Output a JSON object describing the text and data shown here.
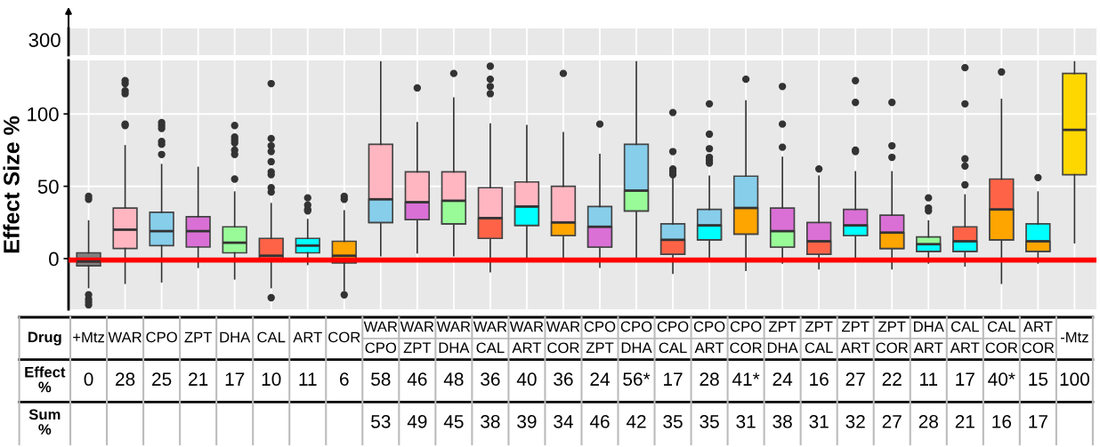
{
  "chart_data": [
    {
      "type": "other",
      "annotations": [
        "300"
      ]
    },
    {
      "type": "box",
      "ylabel": "Effect Size %",
      "categories": [
        "+Mtz",
        "WAR",
        "CPO",
        "ZPT",
        "DHA",
        "CAL",
        "ART",
        "COR",
        "WAR\nCPO",
        "WAR\nZPT",
        "WAR\nDHA",
        "WAR\nCAL",
        "WAR\nART",
        "WAR\nCOR",
        "CPO\nZPT",
        "CPO\nDHA",
        "CPO\nCAL",
        "CPO\nART",
        "CPO\nCOR",
        "ZPT\nDHA",
        "ZPT\nCAL",
        "ZPT\nART",
        "ZPT\nCOR",
        "DHA\nART",
        "CAL\nART",
        "CAL\nCOR",
        "ART\nCOR",
        "-Mtz"
      ],
      "boxes": [
        {
          "low": -20,
          "q1": -5,
          "median": -2,
          "q3": 4,
          "high": 26,
          "outliers": [
            43,
            41,
            -25,
            -28,
            -30,
            -32
          ]
        },
        {
          "low": -17,
          "q1": 7,
          "median": 20,
          "q3": 35,
          "high": 78,
          "outliers": [
            123,
            121,
            116,
            114,
            93,
            92
          ]
        },
        {
          "low": -16,
          "q1": 9,
          "median": 19,
          "q3": 32,
          "high": 65,
          "outliers": [
            94,
            92,
            90,
            81,
            79,
            72
          ]
        },
        {
          "low": -6,
          "q1": 8,
          "median": 19,
          "q3": 29,
          "high": 63
        },
        {
          "low": -14,
          "q1": 4,
          "median": 11,
          "q3": 22,
          "high": 46,
          "outliers": [
            92,
            84,
            82,
            80,
            75,
            72,
            55
          ]
        },
        {
          "low": -20,
          "q1": -1,
          "median": 2,
          "q3": 14,
          "high": 38,
          "outliers": [
            121,
            83,
            78,
            74,
            67,
            60,
            58,
            49,
            46,
            -27
          ]
        },
        {
          "low": -4,
          "q1": 4,
          "median": 9,
          "q3": 14,
          "high": 27,
          "outliers": [
            42,
            37,
            34,
            33
          ]
        },
        {
          "low": -22,
          "q1": -3,
          "median": 2,
          "q3": 12,
          "high": 33,
          "outliers": [
            43,
            41,
            -25
          ]
        },
        {
          "low": 2,
          "q1": 25,
          "median": 41,
          "q3": 79,
          "high": 136
        },
        {
          "low": 4,
          "q1": 27,
          "median": 39,
          "q3": 60,
          "high": 94,
          "outliers": [
            118
          ]
        },
        {
          "low": 2,
          "q1": 24,
          "median": 40,
          "q3": 60,
          "high": 111,
          "outliers": [
            128
          ]
        },
        {
          "low": -9,
          "q1": 14,
          "median": 28,
          "q3": 49,
          "high": 93,
          "outliers": [
            133,
            124,
            119,
            114
          ]
        },
        {
          "low": 1,
          "q1": 23,
          "median": 36,
          "q3": 53,
          "high": 92
        },
        {
          "low": -2,
          "q1": 16,
          "median": 25,
          "q3": 50,
          "high": 87,
          "outliers": [
            128
          ]
        },
        {
          "low": -6,
          "q1": 8,
          "median": 22,
          "q3": 36,
          "high": 72,
          "outliers": [
            93
          ]
        },
        {
          "low": 1,
          "q1": 33,
          "median": 47,
          "q3": 79,
          "high": 136
        },
        {
          "low": -10,
          "q1": 3,
          "median": 13,
          "q3": 24,
          "high": 57,
          "outliers": [
            101,
            74,
            62,
            60,
            58
          ]
        },
        {
          "low": -1,
          "q1": 13,
          "median": 23,
          "q3": 34,
          "high": 57,
          "outliers": [
            107,
            86,
            76,
            70,
            68,
            66
          ]
        },
        {
          "low": -8,
          "q1": 17,
          "median": 35,
          "q3": 57,
          "high": 109,
          "outliers": [
            124
          ]
        },
        {
          "low": -3,
          "q1": 8,
          "median": 19,
          "q3": 35,
          "high": 70,
          "outliers": [
            119,
            93,
            77
          ]
        },
        {
          "low": -7,
          "q1": 3,
          "median": 12,
          "q3": 25,
          "high": 57,
          "outliers": [
            62
          ]
        },
        {
          "low": -1,
          "q1": 16,
          "median": 23,
          "q3": 34,
          "high": 60,
          "outliers": [
            123,
            108,
            75,
            74
          ]
        },
        {
          "low": -7,
          "q1": 7,
          "median": 18,
          "q3": 30,
          "high": 60,
          "outliers": [
            108,
            78,
            70
          ]
        },
        {
          "low": -3,
          "q1": 5,
          "median": 10,
          "q3": 15,
          "high": 26,
          "outliers": [
            42,
            35,
            33
          ]
        },
        {
          "low": -5,
          "q1": 5,
          "median": 12,
          "q3": 22,
          "high": 44,
          "outliers": [
            132,
            107,
            69,
            64,
            51
          ]
        },
        {
          "low": -17,
          "q1": 13,
          "median": 34,
          "q3": 55,
          "high": 110,
          "outliers": [
            129
          ]
        },
        {
          "low": -3,
          "q1": 5,
          "median": 12,
          "q3": 24,
          "high": 46,
          "outliers": [
            56
          ]
        },
        {
          "low": 11,
          "q1": 58,
          "median": 89,
          "q3": 128,
          "high": 136
        }
      ],
      "colors": [
        "#808080",
        "#ffb6c1",
        "#87ceeb",
        "#da70d6",
        "#98fb98",
        "#ff6347",
        "#00ffff",
        "#ffa500",
        [
          "#ffb6c1",
          "#87ceeb"
        ],
        [
          "#ffb6c1",
          "#da70d6"
        ],
        [
          "#ffb6c1",
          "#98fb98"
        ],
        [
          "#ffb6c1",
          "#ff6347"
        ],
        [
          "#ffb6c1",
          "#00ffff"
        ],
        [
          "#ffb6c1",
          "#ffa500"
        ],
        [
          "#87ceeb",
          "#da70d6"
        ],
        [
          "#87ceeb",
          "#98fb98"
        ],
        [
          "#87ceeb",
          "#ff6347"
        ],
        [
          "#87ceeb",
          "#00ffff"
        ],
        [
          "#87ceeb",
          "#ffa500"
        ],
        [
          "#da70d6",
          "#98fb98"
        ],
        [
          "#da70d6",
          "#ff6347"
        ],
        [
          "#da70d6",
          "#00ffff"
        ],
        [
          "#da70d6",
          "#ffa500"
        ],
        [
          "#98fb98",
          "#00ffff"
        ],
        [
          "#ff6347",
          "#00ffff"
        ],
        [
          "#ff6347",
          "#ffa500"
        ],
        [
          "#00ffff",
          "#ffa500"
        ],
        "#ffd700"
      ],
      "value_labels": [
        "0",
        "28",
        "25",
        "21",
        "17",
        "10",
        "11",
        "6",
        "58",
        "46",
        "48",
        "36",
        "40",
        "36",
        "24",
        "56*",
        "17",
        "28",
        "41*",
        "24",
        "16",
        "27",
        "22",
        "11",
        "17",
        "40*",
        "15",
        "100"
      ],
      "totals": [
        null,
        null,
        null,
        null,
        null,
        null,
        null,
        null,
        "53",
        "49",
        "45",
        "38",
        "39",
        "34",
        "46",
        "42",
        "35",
        "35",
        "31",
        "38",
        "31",
        "32",
        "27",
        "28",
        "21",
        "16",
        "17",
        null
      ],
      "annotations": [
        "Drug",
        "Effect\n%",
        "Sum\n%"
      ],
      "ylim": [
        -35,
        137
      ],
      "yticks": [
        0,
        50,
        100
      ],
      "ref_lines": [
        {
          "axis": "y",
          "value": -1,
          "color": "#ff0000"
        }
      ],
      "grid": true
    }
  ]
}
